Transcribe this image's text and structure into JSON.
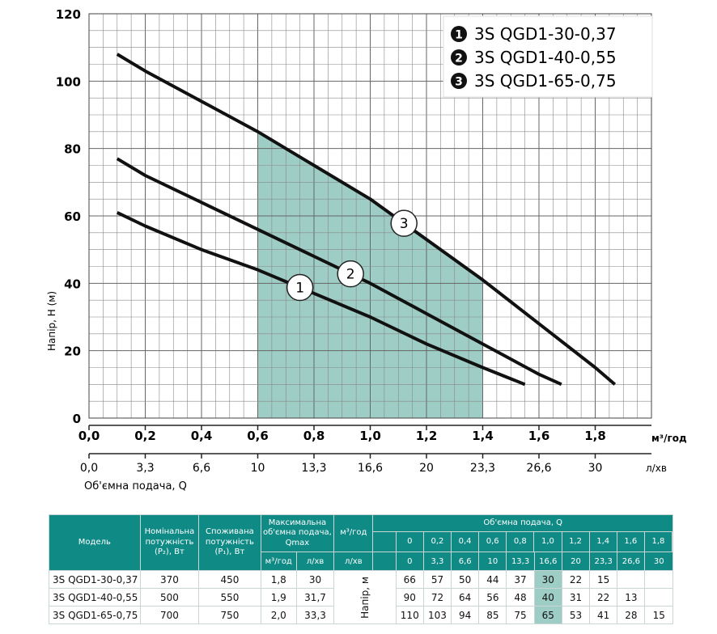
{
  "colors": {
    "shade": "#9ecdc6",
    "header": "#0f8a84",
    "curve": "#111111"
  },
  "chart_data": {
    "type": "line",
    "ylabel": "Напір, Н (м)",
    "x_unit_top": "м³/год",
    "x_unit_bottom": "л/хв",
    "bottom_axis_label": "Об'ємна подача, Q",
    "xlim": [
      0,
      2.0
    ],
    "ylim": [
      0,
      120
    ],
    "y_ticks": [
      "0",
      "20",
      "40",
      "60",
      "80",
      "100",
      "120"
    ],
    "x_ticks_m3h": [
      "0,0",
      "0,2",
      "0,4",
      "0,6",
      "0,8",
      "1,0",
      "1,2",
      "1,4",
      "1,6",
      "1,8"
    ],
    "x_ticks_lmin": [
      "0,0",
      "3,3",
      "6,6",
      "10",
      "13,3",
      "16,6",
      "20",
      "23,3",
      "26,6",
      "30"
    ],
    "shaded_range": [
      0.6,
      1.4
    ],
    "grid": true,
    "legend_position": "top-right",
    "series": [
      {
        "name": "3S QGD1-30-0,37",
        "marker": "1",
        "legend_glyph": "❶",
        "x": [
          0.1,
          0.2,
          0.4,
          0.6,
          0.8,
          1.0,
          1.2,
          1.4,
          1.55
        ],
        "y": [
          61,
          57,
          50,
          44,
          37,
          30,
          22,
          15,
          10
        ]
      },
      {
        "name": "3S QGD1-40-0,55",
        "marker": "2",
        "legend_glyph": "❷",
        "x": [
          0.1,
          0.2,
          0.4,
          0.6,
          0.8,
          1.0,
          1.2,
          1.4,
          1.6,
          1.68
        ],
        "y": [
          77,
          72,
          64,
          56,
          48,
          40,
          31,
          22,
          13,
          10
        ]
      },
      {
        "name": "3S QGD1-65-0,75",
        "marker": "3",
        "legend_glyph": "❸",
        "x": [
          0.1,
          0.2,
          0.4,
          0.6,
          0.8,
          1.0,
          1.2,
          1.4,
          1.6,
          1.8,
          1.87
        ],
        "y": [
          108,
          103,
          94,
          85,
          75,
          65,
          53,
          41,
          28,
          15,
          10
        ]
      }
    ],
    "markers_at_x": [
      0.75,
      0.93,
      1.12
    ]
  },
  "table": {
    "col_model": "Модель",
    "col_p2": "Номінальна потужність (P₂), Вт",
    "col_p1": "Споживана потужність (P₁), Вт",
    "col_qmax": "Максимальна об'ємна подача, Qmax",
    "col_flow": "Об'ємна подача, Q",
    "unit_m3h": "м³/год",
    "unit_lmin": "л/хв",
    "head_label": "Напір, м",
    "flow_m3h": [
      "0",
      "0,2",
      "0,4",
      "0,6",
      "0,8",
      "1,0",
      "1,2",
      "1,4",
      "1,6",
      "1,8"
    ],
    "flow_lmin": [
      "0",
      "3,3",
      "6,6",
      "10",
      "13,3",
      "16,6",
      "20",
      "23,3",
      "26,6",
      "30"
    ],
    "rows": [
      {
        "model": "3S QGD1-30-0,37",
        "p2": "370",
        "p1": "450",
        "qmax_m3h": "1,8",
        "qmax_lmin": "30",
        "heads": [
          "66",
          "57",
          "50",
          "44",
          "37",
          "30",
          "22",
          "15",
          "",
          ""
        ]
      },
      {
        "model": "3S QGD1-40-0,55",
        "p2": "500",
        "p1": "550",
        "qmax_m3h": "1,9",
        "qmax_lmin": "31,7",
        "heads": [
          "90",
          "72",
          "64",
          "56",
          "48",
          "40",
          "31",
          "22",
          "13",
          ""
        ]
      },
      {
        "model": "3S QGD1-65-0,75",
        "p2": "700",
        "p1": "750",
        "qmax_m3h": "2,0",
        "qmax_lmin": "33,3",
        "heads": [
          "110",
          "103",
          "94",
          "85",
          "75",
          "65",
          "53",
          "41",
          "28",
          "15"
        ]
      }
    ]
  }
}
